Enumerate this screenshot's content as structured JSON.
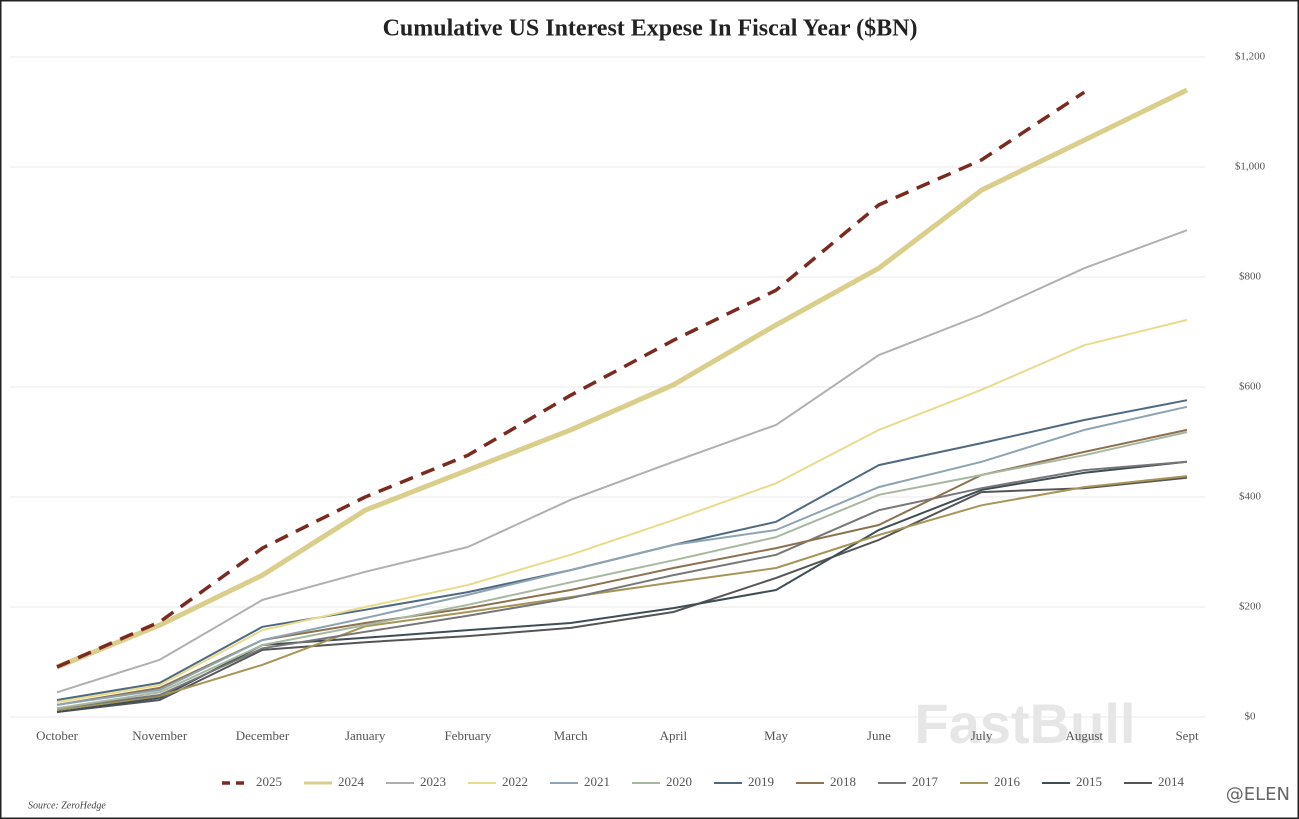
{
  "chart_data": {
    "type": "line",
    "title": "Cumulative US Interest Expese In Fiscal Year ($BN)",
    "source": "Source: ZeroHedge",
    "watermark": "FastBull",
    "credit": "@ELEN",
    "categories": [
      "October",
      "November",
      "December",
      "January",
      "February",
      "March",
      "April",
      "May",
      "June",
      "July",
      "August",
      "Sept"
    ],
    "ylim": [
      0,
      1200
    ],
    "yticks": [
      {
        "value": 0,
        "label": "$0"
      },
      {
        "value": 200,
        "label": "$200"
      },
      {
        "value": 400,
        "label": "$400"
      },
      {
        "value": 600,
        "label": "$600"
      },
      {
        "value": 800,
        "label": "$800"
      },
      {
        "value": 1000,
        "label": "$1,000"
      },
      {
        "value": 1200,
        "label": "$1,200"
      }
    ],
    "grid": true,
    "legend": "bottom",
    "series": [
      {
        "name": "2025",
        "color": "#7b2a20",
        "style": "dashed",
        "values": [
          91,
          173,
          307,
          400,
          476,
          585,
          685,
          776,
          931,
          1013,
          1136,
          null
        ]
      },
      {
        "name": "2024",
        "color": "#d9cf8a",
        "style": "bold",
        "values": [
          91,
          167,
          258,
          376,
          449,
          522,
          604,
          713,
          816,
          958,
          1049,
          1140
        ]
      },
      {
        "name": "2023",
        "color": "#b0b0b0",
        "values": [
          45,
          104,
          213,
          264,
          309,
          395,
          464,
          531,
          658,
          731,
          816,
          885
        ]
      },
      {
        "name": "2022",
        "color": "#e8dc8c",
        "values": [
          27,
          58,
          158,
          200,
          240,
          295,
          358,
          425,
          522,
          595,
          676,
          722
        ]
      },
      {
        "name": "2021",
        "color": "#8ea4b0",
        "values": [
          22,
          49,
          140,
          180,
          222,
          267,
          313,
          340,
          418,
          464,
          522,
          564
        ]
      },
      {
        "name": "2020",
        "color": "#a8b8a0",
        "values": [
          16,
          45,
          131,
          167,
          204,
          245,
          285,
          327,
          404,
          440,
          476,
          518
        ]
      },
      {
        "name": "2019",
        "color": "#4f6a80",
        "values": [
          31,
          62,
          164,
          195,
          227,
          267,
          313,
          355,
          458,
          498,
          540,
          576
        ]
      },
      {
        "name": "2018",
        "color": "#8c7350",
        "values": [
          22,
          53,
          140,
          171,
          198,
          231,
          271,
          307,
          349,
          440,
          482,
          522
        ]
      },
      {
        "name": "2017",
        "color": "#777777",
        "values": [
          16,
          40,
          125,
          155,
          184,
          216,
          258,
          295,
          376,
          416,
          449,
          464
        ]
      },
      {
        "name": "2016",
        "color": "#a69556",
        "values": [
          13,
          38,
          95,
          165,
          191,
          218,
          245,
          271,
          331,
          385,
          418,
          438
        ]
      },
      {
        "name": "2015",
        "color": "#3f4e55",
        "values": [
          9,
          35,
          131,
          144,
          158,
          171,
          198,
          231,
          340,
          413,
          444,
          464
        ]
      },
      {
        "name": "2014",
        "color": "#555555",
        "values": [
          9,
          31,
          122,
          136,
          147,
          162,
          191,
          253,
          322,
          409,
          416,
          435
        ]
      }
    ]
  }
}
